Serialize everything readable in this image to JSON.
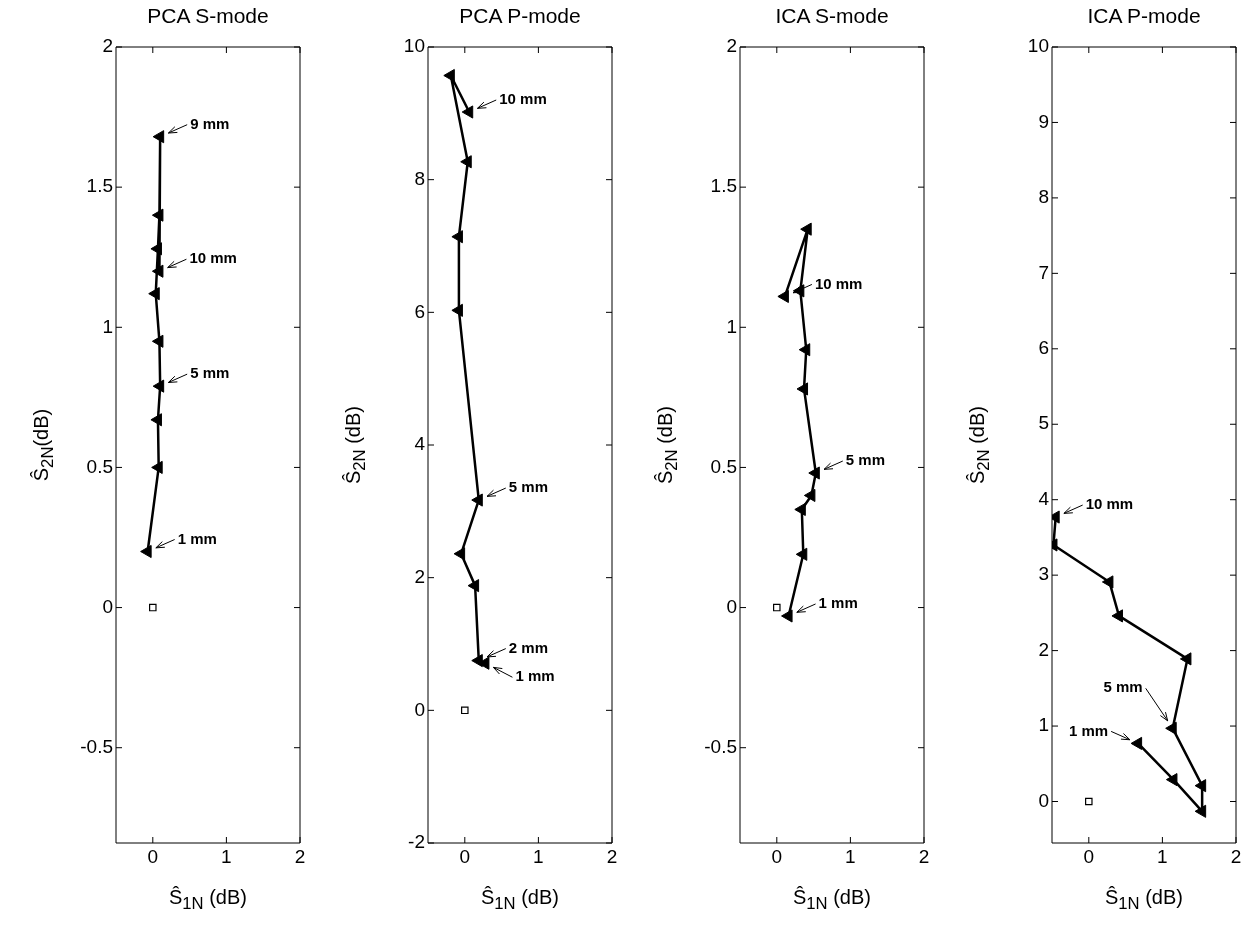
{
  "chart_data": [
    {
      "type": "line",
      "title": "PCA S-mode",
      "xlabel": "Ŝ$_{1N}$ (dB)",
      "ylabel": "Ŝ$_{2N}$(dB)",
      "xlim": [
        -0.5,
        2
      ],
      "xticks": [
        0,
        1,
        2
      ],
      "ylim": [
        -0.84,
        2
      ],
      "yticks": [
        -0.5,
        0,
        0.5,
        1,
        1.5,
        2
      ],
      "grid": false,
      "marker": "triangle",
      "line_style": "solid",
      "series": [
        {
          "type": "line",
          "color": "#000000",
          "x": [
            -0.07,
            0.08,
            0.07,
            0.1,
            0.09,
            0.04,
            0.07,
            0.09,
            0.1,
            0.09
          ],
          "values": [
            0.2,
            0.5,
            0.67,
            0.79,
            0.95,
            1.12,
            1.28,
            1.4,
            1.68,
            1.2
          ]
        },
        {
          "type": "scatter",
          "marker": "square",
          "color": "#000000",
          "x": [
            0
          ],
          "values": [
            0
          ]
        }
      ],
      "annotations": [
        {
          "text": "9 mm",
          "x": 0.1,
          "y": 1.68
        },
        {
          "text": "10 mm",
          "x": 0.09,
          "y": 1.2
        },
        {
          "text": "5 mm",
          "x": 0.1,
          "y": 0.79
        },
        {
          "text": "1 mm",
          "x": -0.07,
          "y": 0.2
        }
      ]
    },
    {
      "type": "line",
      "title": "PCA P-mode",
      "xlabel": "Ŝ$_{1N}$ (dB)",
      "ylabel": "Ŝ$_{2N}$ (dB)",
      "xlim": [
        -0.5,
        2
      ],
      "xticks": [
        0,
        1,
        2
      ],
      "ylim": [
        -2,
        10
      ],
      "yticks": [
        -2,
        0,
        2,
        4,
        6,
        8,
        10
      ],
      "grid": false,
      "marker": "triangle",
      "line_style": "solid",
      "series": [
        {
          "type": "line",
          "color": "#000000",
          "x": [
            0.28,
            0.19,
            0.14,
            -0.05,
            0.19,
            -0.08,
            -0.08,
            0.04,
            -0.19,
            0.06
          ],
          "values": [
            0.71,
            0.75,
            1.88,
            2.36,
            3.17,
            6.03,
            7.14,
            8.27,
            9.57,
            9.02
          ]
        },
        {
          "type": "scatter",
          "marker": "square",
          "color": "#000000",
          "x": [
            0
          ],
          "values": [
            0
          ]
        }
      ],
      "annotations": [
        {
          "text": "10 mm",
          "x": 0.06,
          "y": 9.02
        },
        {
          "text": "5 mm",
          "x": 0.19,
          "y": 3.17
        },
        {
          "text": "2 mm",
          "x": 0.19,
          "y": 0.75
        },
        {
          "text": "1 mm",
          "x": 0.28,
          "y": 0.71
        }
      ]
    },
    {
      "type": "line",
      "title": "ICA S-mode",
      "xlabel": "Ŝ$_{1N}$ (dB)",
      "ylabel": "Ŝ$_{2N}$ (dB)",
      "xlim": [
        -0.5,
        2
      ],
      "xticks": [
        0,
        1,
        2
      ],
      "ylim": [
        -0.84,
        2
      ],
      "yticks": [
        -0.5,
        0,
        0.5,
        1,
        1.5,
        2
      ],
      "grid": false,
      "marker": "triangle",
      "line_style": "solid",
      "series": [
        {
          "type": "line",
          "color": "#000000",
          "x": [
            0.16,
            0.36,
            0.34,
            0.47,
            0.53,
            0.37,
            0.4,
            0.32,
            0.42,
            0.11
          ],
          "values": [
            -0.03,
            0.19,
            0.35,
            0.4,
            0.48,
            0.78,
            0.92,
            1.13,
            1.35,
            1.11
          ]
        },
        {
          "type": "scatter",
          "marker": "square",
          "color": "#000000",
          "x": [
            0
          ],
          "values": [
            0
          ]
        }
      ],
      "annotations": [
        {
          "text": "10 mm",
          "x": 0.11,
          "y": 1.11
        },
        {
          "text": "5 mm",
          "x": 0.53,
          "y": 0.48
        },
        {
          "text": "1 mm",
          "x": 0.16,
          "y": -0.03
        }
      ]
    },
    {
      "type": "line",
      "title": "ICA P-mode",
      "xlabel": "Ŝ$_{1N}$ (dB)",
      "ylabel": "Ŝ$_{2N}$ (dB)",
      "xlim": [
        -0.5,
        2
      ],
      "xticks": [
        0,
        1,
        2
      ],
      "ylim": [
        -0.55,
        10
      ],
      "yticks": [
        0,
        1,
        2,
        3,
        4,
        5,
        6,
        7,
        8,
        9,
        10
      ],
      "grid": false,
      "marker": "triangle",
      "line_style": "solid",
      "series": [
        {
          "type": "line",
          "color": "#000000",
          "x": [
            0.67,
            1.15,
            1.54,
            1.54,
            1.14,
            1.34,
            0.41,
            0.28,
            -0.48,
            -0.45
          ],
          "values": [
            0.77,
            0.29,
            -0.13,
            0.21,
            0.97,
            1.89,
            2.46,
            2.91,
            3.4,
            3.77
          ]
        },
        {
          "type": "scatter",
          "marker": "square",
          "color": "#000000",
          "x": [
            0
          ],
          "values": [
            0
          ]
        }
      ],
      "annotations": [
        {
          "text": "10 mm",
          "x": -0.45,
          "y": 3.77
        },
        {
          "text": "1 mm",
          "x": 0.67,
          "y": 0.77
        },
        {
          "text": "5 mm",
          "x": 1.14,
          "y": 0.97
        }
      ]
    }
  ]
}
